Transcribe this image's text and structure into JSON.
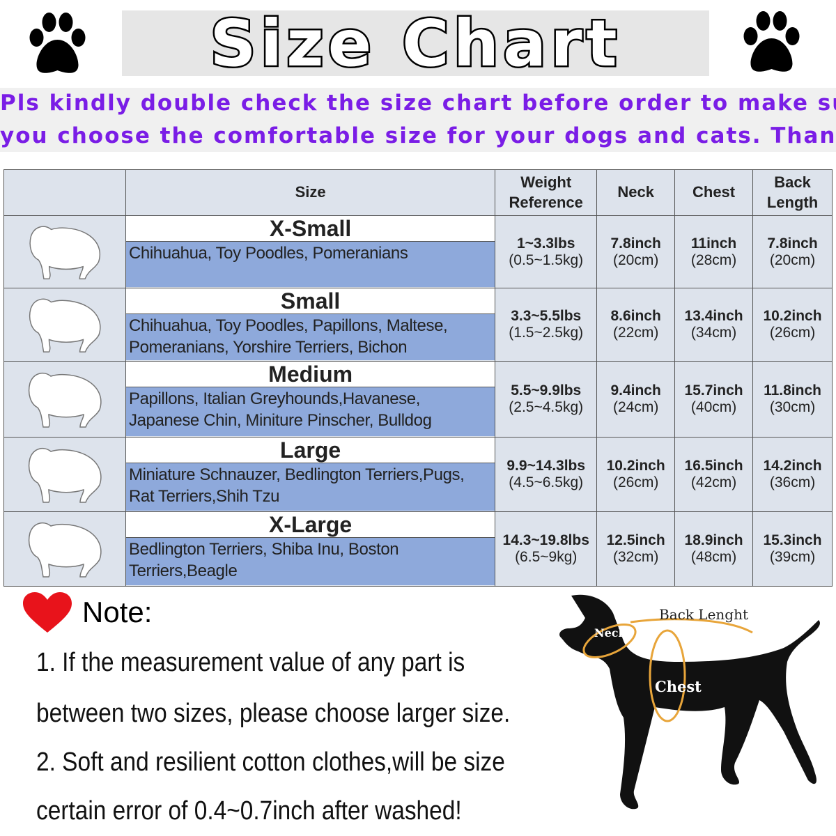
{
  "header": {
    "title": "Size Chart",
    "paw_icon": "paw-icon"
  },
  "subtitle": {
    "line1": "Pls kindly double check the size chart before order to make sure",
    "line2": "you choose the comfortable size for your dogs and cats. Thanks!",
    "color": "#7a1de6"
  },
  "table": {
    "headers": [
      "",
      "Size",
      "Weight Reference",
      "Neck",
      "Chest",
      "Back Length"
    ],
    "rows": [
      {
        "size": "X-Small",
        "breeds": "Chihuahua, Toy Poodles, Pomeranians",
        "weight": "1~3.3lbs",
        "weight_kg": "(0.5~1.5kg)",
        "neck": "7.8inch",
        "neck_cm": "(20cm)",
        "chest": "11inch",
        "chest_cm": "(28cm)",
        "back": "7.8inch",
        "back_cm": "(20cm)"
      },
      {
        "size": "Small",
        "breeds": "Chihuahua, Toy Poodles, Papillons, Maltese, Pomeranians, Yorshire Terriers, Bichon",
        "weight": "3.3~5.5lbs",
        "weight_kg": "(1.5~2.5kg)",
        "neck": "8.6inch",
        "neck_cm": "(22cm)",
        "chest": "13.4inch",
        "chest_cm": "(34cm)",
        "back": "10.2inch",
        "back_cm": "(26cm)"
      },
      {
        "size": "Medium",
        "breeds": "Papillons, Italian Greyhounds,Havanese, Japanese Chin, Miniture Pinscher, Bulldog",
        "weight": "5.5~9.9lbs",
        "weight_kg": "(2.5~4.5kg)",
        "neck": "9.4inch",
        "neck_cm": "(24cm)",
        "chest": "15.7inch",
        "chest_cm": "(40cm)",
        "back": "11.8inch",
        "back_cm": "(30cm)"
      },
      {
        "size": "Large",
        "breeds": "Miniature Schnauzer, Bedlington Terriers,Pugs, Rat Terriers,Shih Tzu",
        "weight": "9.9~14.3lbs",
        "weight_kg": "(4.5~6.5kg)",
        "neck": "10.2inch",
        "neck_cm": "(26cm)",
        "chest": "16.5inch",
        "chest_cm": "(42cm)",
        "back": "14.2inch",
        "back_cm": "(36cm)"
      },
      {
        "size": "X-Large",
        "breeds": "Bedlington Terriers, Shiba Inu, Boston Terriers,Beagle",
        "weight": "14.3~19.8lbs",
        "weight_kg": "(6.5~9kg)",
        "neck": "12.5inch",
        "neck_cm": "(32cm)",
        "chest": "18.9inch",
        "chest_cm": "(48cm)",
        "back": "15.3inch",
        "back_cm": "(39cm)"
      }
    ]
  },
  "notes": {
    "title": "Note:",
    "lines": [
      "1. If the measurement value of any part is",
      "between two sizes, please choose larger size.",
      "2. Soft and resilient cotton clothes,will be size",
      "certain error of 0.4~0.7inch after washed!"
    ]
  },
  "diagram": {
    "neck": "Neck",
    "back": "Back Lenght",
    "chest": "Chest"
  },
  "colors": {
    "breed_bg": "#8ea9db",
    "heart": "#e8131b",
    "measure_line": "#e8a53a"
  }
}
